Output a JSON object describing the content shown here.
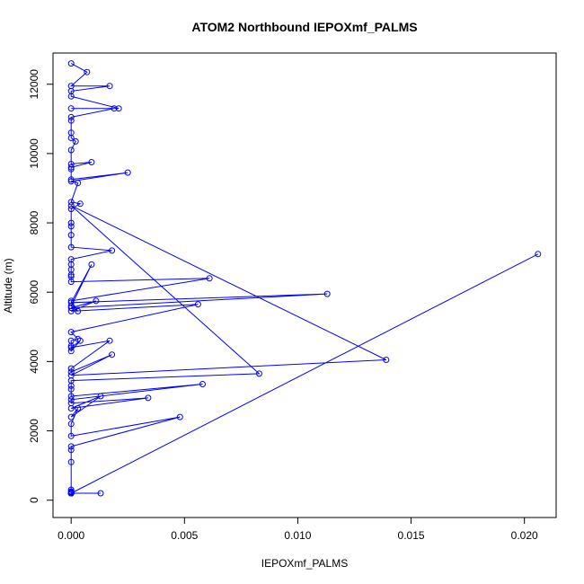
{
  "chart_data": {
    "type": "line",
    "title": "ATOM2 Northbound IEPOXmf_PALMS",
    "xlabel": "IEPOXmf_PALMS",
    "ylabel": "Altitude (m)",
    "xlim": [
      -0.0008,
      0.0214
    ],
    "ylim": [
      -500,
      12900
    ],
    "xticks": [
      0.0,
      0.005,
      0.01,
      0.015,
      0.02
    ],
    "xtick_labels": [
      "0.000",
      "0.005",
      "0.010",
      "0.015",
      "0.020"
    ],
    "yticks": [
      0,
      2000,
      4000,
      6000,
      8000,
      10000,
      12000
    ],
    "ytick_labels": [
      "0",
      "2000",
      "4000",
      "6000",
      "8000",
      "10000",
      "12000"
    ],
    "grid": false,
    "color": "#0000ff",
    "series": [
      {
        "x": [
          0.0,
          0.0007,
          0.0,
          0.0017,
          0.0,
          0.0,
          0.0021,
          0.0,
          0.0019,
          0.0,
          0.0,
          0.0,
          0.0,
          0.0002,
          0.0,
          0.0,
          0.0009,
          0.0,
          0.0,
          0.0,
          0.0025,
          0.0,
          0.0003,
          0.0,
          0.0004,
          0.0,
          0.0,
          0.0,
          0.0,
          0.0,
          0.0018,
          0.0,
          0.0,
          0.0,
          0.0,
          0.0,
          0.0,
          0.0061,
          0.0,
          0.0003,
          0.0,
          0.0009,
          0.0,
          0.0113,
          0.0,
          0.0011,
          0.0,
          0.0056,
          0.0,
          0.0003,
          0.0,
          0.0,
          0.0,
          0.0004,
          0.0,
          0.0017,
          0.0,
          0.0,
          0.0018,
          0.0,
          0.0139,
          0.0,
          0.0083,
          0.0,
          0.0,
          0.0,
          0.0,
          0.0058,
          0.0,
          0.0,
          0.0034,
          0.0,
          0.0013,
          0.0,
          0.0003,
          0.0,
          0.0,
          0.0048,
          0.0,
          0.0,
          0.0,
          0.0,
          0.0,
          0.0,
          0.0,
          0.0,
          0.0,
          0.0,
          0.0,
          0.0206,
          0.0,
          0.0,
          0.0013,
          0.0,
          0.0
        ],
        "y": [
          12600,
          12350,
          11950,
          11950,
          11800,
          11650,
          11300,
          11300,
          11300,
          11050,
          10950,
          10600,
          10450,
          10350,
          10100,
          9700,
          9750,
          9600,
          9550,
          9250,
          9450,
          9200,
          9150,
          8600,
          8550,
          8400,
          8000,
          7900,
          7650,
          7300,
          7200,
          6950,
          6800,
          6650,
          6500,
          6450,
          6300,
          6400,
          5750,
          5450,
          5600,
          6800,
          5700,
          5950,
          5550,
          5750,
          5450,
          5650,
          4850,
          4650,
          4600,
          4450,
          4300,
          4600,
          4400,
          4600,
          3800,
          3700,
          4200,
          3600,
          4050,
          8500,
          3650,
          3450,
          3300,
          3200,
          3000,
          3350,
          2900,
          2800,
          2950,
          2650,
          3000,
          2400,
          2650,
          2200,
          1850,
          2400,
          1550,
          1450,
          1100,
          300,
          250,
          230,
          200,
          200,
          200,
          200,
          200,
          7100,
          200,
          200,
          200,
          200,
          200
        ]
      }
    ]
  }
}
